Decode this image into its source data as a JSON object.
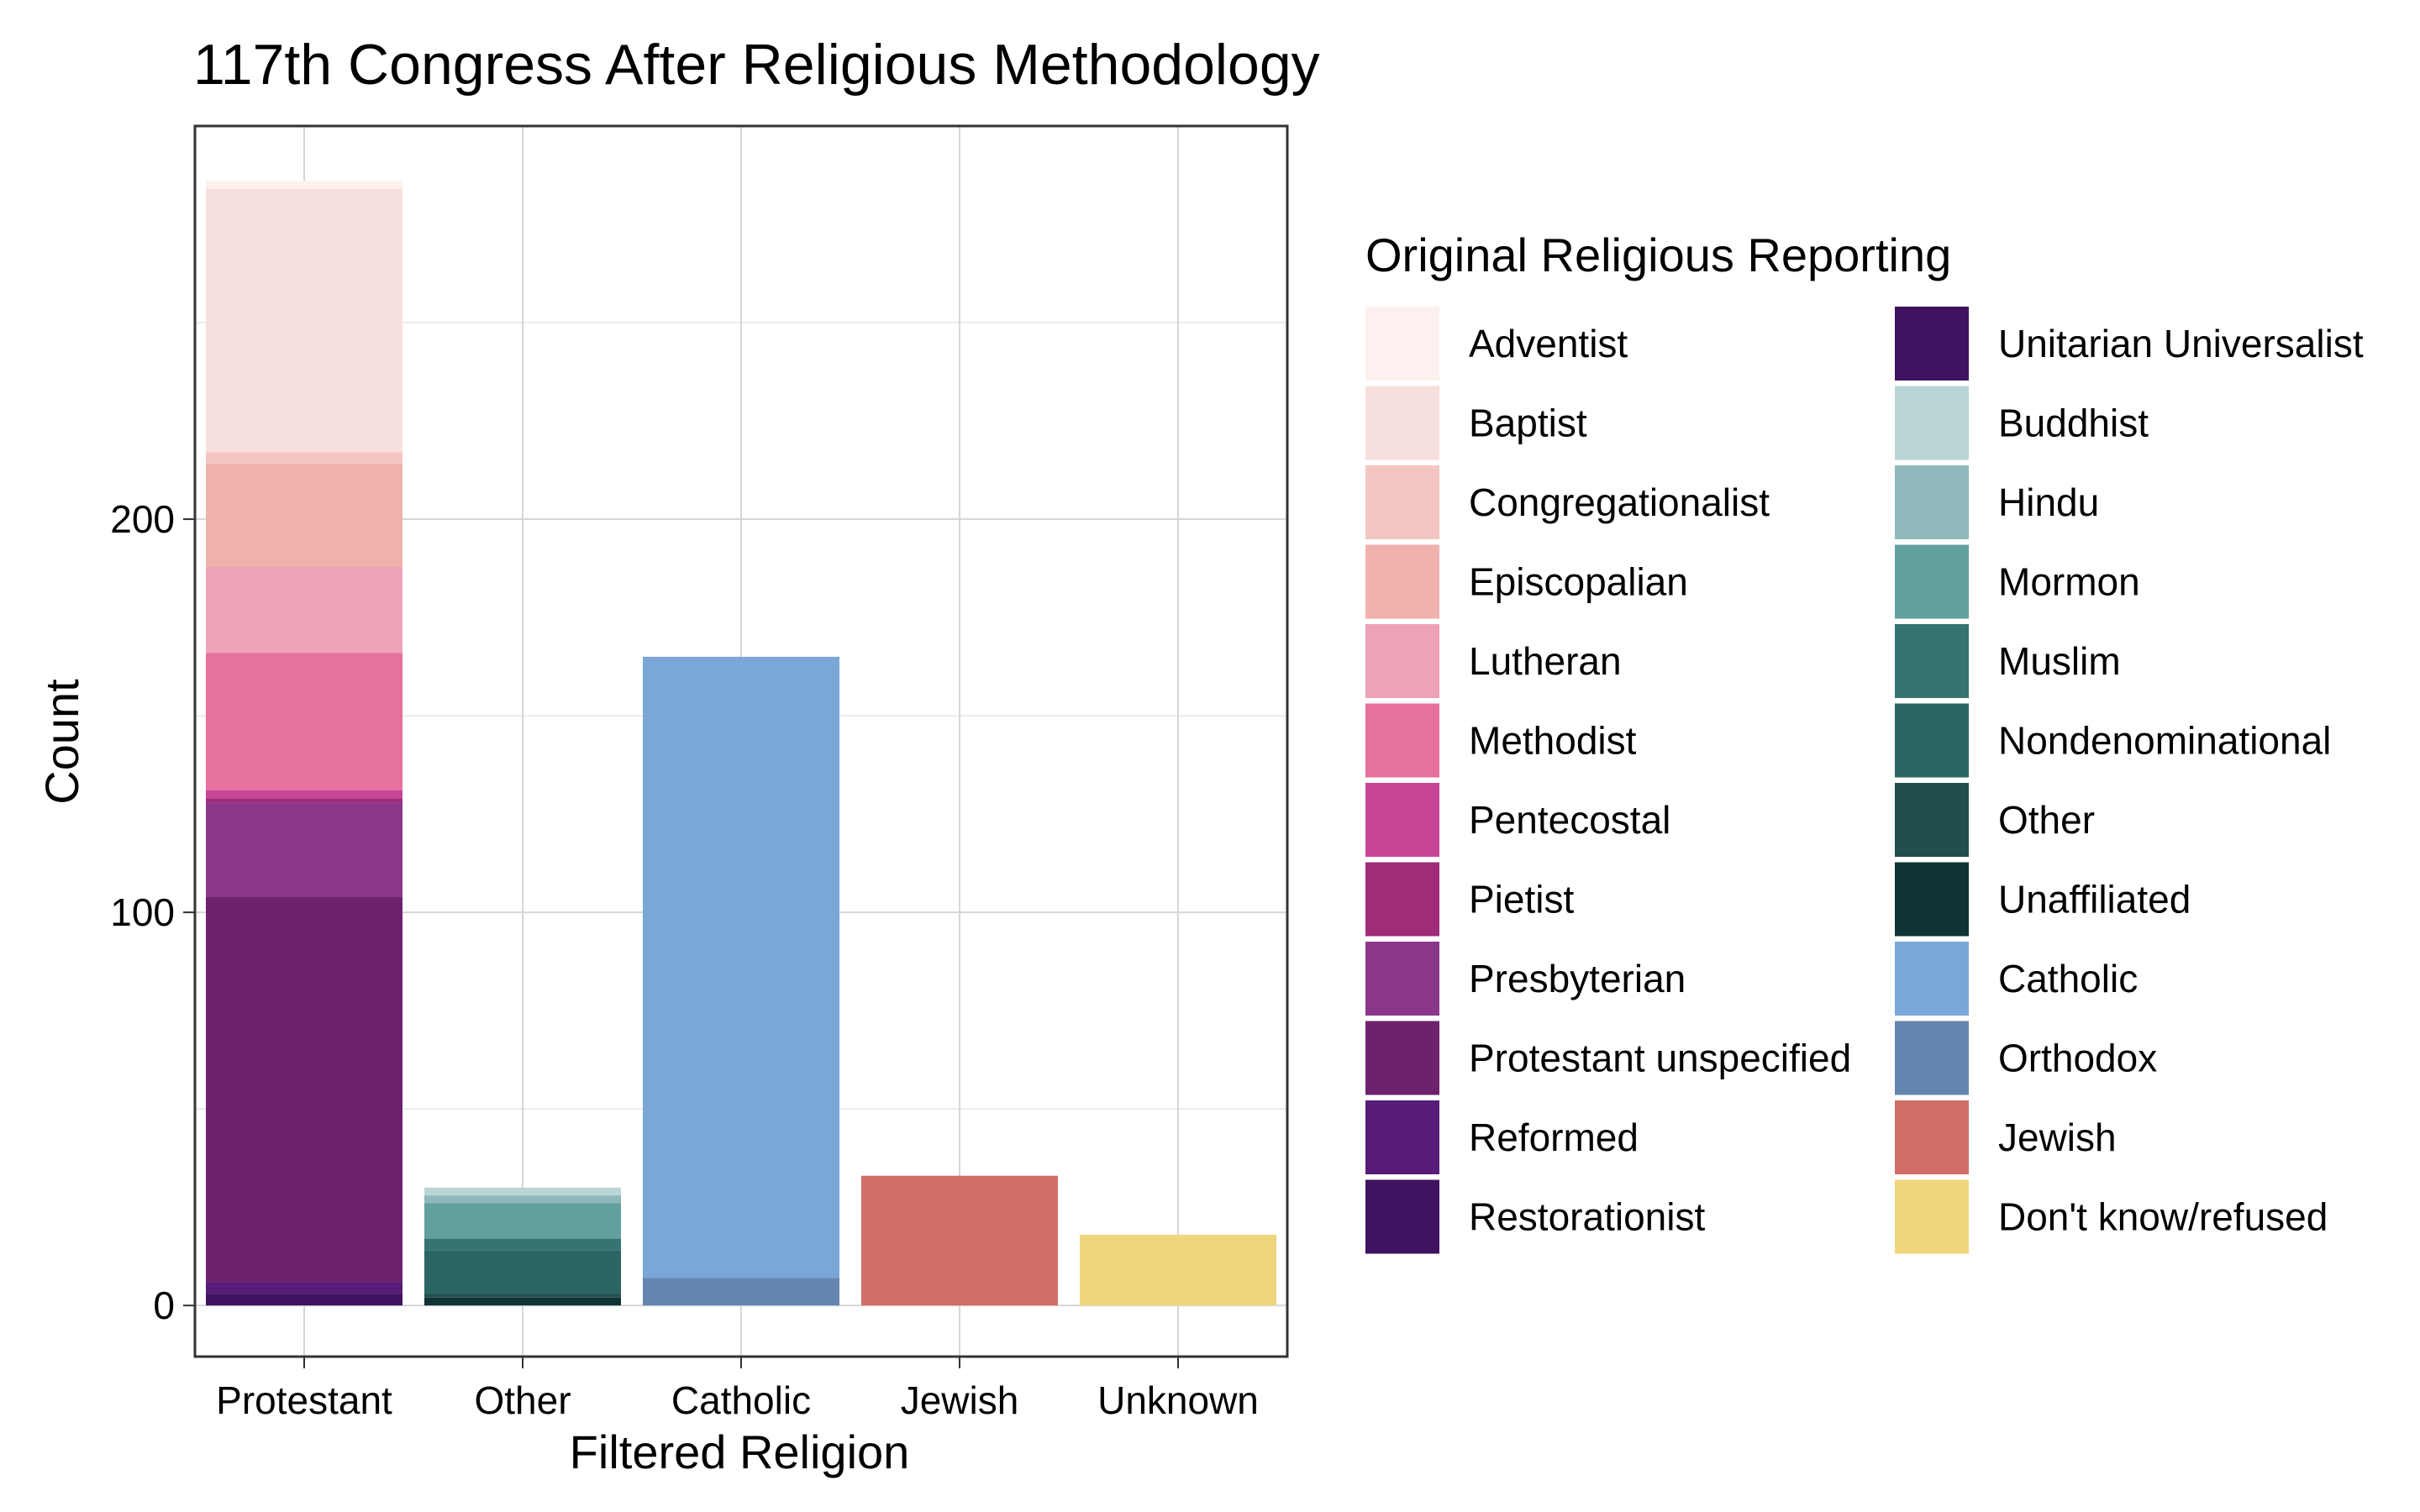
{
  "chart_data": {
    "type": "bar",
    "stacked": true,
    "title": "117th Congress After Religious Methodology",
    "xlabel": "Filtered Religion",
    "ylabel": "Count",
    "ylim": [
      -13,
      300
    ],
    "y_ticks": [
      0,
      100,
      200
    ],
    "grid": true,
    "legend_title": "Original Religious Reporting",
    "legend_position": "right",
    "categories": [
      "Protestant",
      "Other",
      "Catholic",
      "Jewish",
      "Unknown"
    ],
    "series": [
      {
        "name": "Restorationist",
        "color": "#3F1360",
        "values": [
          3,
          0,
          0,
          0,
          0
        ]
      },
      {
        "name": "Reformed",
        "color": "#561C77",
        "values": [
          3,
          0,
          0,
          0,
          0
        ]
      },
      {
        "name": "Protestant unspecified",
        "color": "#6E226E",
        "values": [
          98,
          0,
          0,
          0,
          0
        ]
      },
      {
        "name": "Presbyterian",
        "color": "#8A3789",
        "values": [
          24,
          0,
          0,
          0,
          0
        ]
      },
      {
        "name": "Pietist",
        "color": "#A02C79",
        "values": [
          1,
          0,
          0,
          0,
          0
        ]
      },
      {
        "name": "Pentecostal",
        "color": "#C84596",
        "values": [
          2,
          0,
          0,
          0,
          0
        ]
      },
      {
        "name": "Methodist",
        "color": "#E6709E",
        "values": [
          35,
          0,
          0,
          0,
          0
        ]
      },
      {
        "name": "Lutheran",
        "color": "#EEA2B5",
        "values": [
          22,
          0,
          0,
          0,
          0
        ]
      },
      {
        "name": "Episcopalian",
        "color": "#F0B2AC",
        "values": [
          26,
          0,
          0,
          0,
          0
        ]
      },
      {
        "name": "Congregationalist",
        "color": "#F4C6C2",
        "values": [
          3,
          0,
          0,
          0,
          0
        ]
      },
      {
        "name": "Baptist",
        "color": "#F7DFDE",
        "values": [
          67,
          0,
          0,
          0,
          0
        ]
      },
      {
        "name": "Adventist",
        "color": "#FCF1EE",
        "values": [
          2,
          0,
          0,
          0,
          0
        ]
      },
      {
        "name": "Unitarian Universalist",
        "color": "#3F1360",
        "values": [
          0,
          0,
          0,
          0,
          0
        ]
      },
      {
        "name": "Unaffiliated",
        "color": "#103436",
        "values": [
          0,
          2,
          0,
          0,
          0
        ]
      },
      {
        "name": "Other",
        "color": "#204F4C",
        "values": [
          0,
          1,
          0,
          0,
          0
        ]
      },
      {
        "name": "Nondenominational",
        "color": "#2B6563",
        "values": [
          0,
          11,
          0,
          0,
          0
        ]
      },
      {
        "name": "Muslim",
        "color": "#357473",
        "values": [
          0,
          3,
          0,
          0,
          0
        ]
      },
      {
        "name": "Mormon",
        "color": "#62A09E",
        "values": [
          0,
          9,
          0,
          0,
          0
        ]
      },
      {
        "name": "Hindu",
        "color": "#8EB8B9",
        "values": [
          0,
          2,
          0,
          0,
          0
        ]
      },
      {
        "name": "Buddhist",
        "color": "#BAD5D6",
        "values": [
          0,
          2,
          0,
          0,
          0
        ]
      },
      {
        "name": "Orthodox",
        "color": "#6485AD",
        "values": [
          0,
          0,
          7,
          0,
          0
        ]
      },
      {
        "name": "Catholic",
        "color": "#7BA6D8",
        "values": [
          0,
          0,
          158,
          0,
          0
        ]
      },
      {
        "name": "Jewish",
        "color": "#D16E67",
        "values": [
          0,
          0,
          0,
          33,
          0
        ]
      },
      {
        "name": "Don't know/refused",
        "color": "#F0D57D",
        "values": [
          0,
          0,
          0,
          0,
          18
        ]
      }
    ],
    "legend_order": [
      "Adventist",
      "Baptist",
      "Congregationalist",
      "Episcopalian",
      "Lutheran",
      "Methodist",
      "Pentecostal",
      "Pietist",
      "Presbyterian",
      "Protestant unspecified",
      "Reformed",
      "Restorationist",
      "Unitarian Universalist",
      "Buddhist",
      "Hindu",
      "Mormon",
      "Muslim",
      "Nondenominational",
      "Other",
      "Unaffiliated",
      "Catholic",
      "Orthodox",
      "Jewish",
      "Don't know/refused"
    ]
  }
}
